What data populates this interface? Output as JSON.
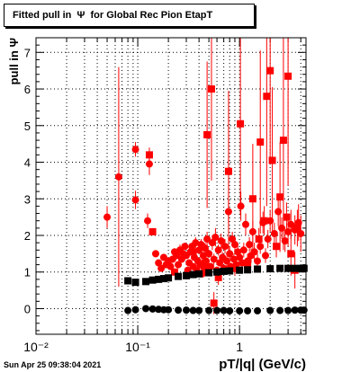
{
  "title": "Fitted pull in  Ψ  for Global Rec Pion EtapT",
  "timestamp": "Sun Apr 25 09:38:04 2021",
  "chart_data": {
    "type": "scatter",
    "title": "Fitted pull in  Ψ  for Global Rec Pion EtapT",
    "xlabel": "pT/|q| (GeV/c)",
    "ylabel": "pull in  Ψ",
    "x_scale": "log",
    "xlim": [
      0.01,
      4.5
    ],
    "ylim": [
      -0.7,
      7.4
    ],
    "grid": true,
    "x_major_ticks": [
      {
        "v": 0.01,
        "label": "10⁻²"
      },
      {
        "v": 0.1,
        "label": "10⁻¹"
      },
      {
        "v": 1,
        "label": "1"
      }
    ],
    "y_ticks": [
      0,
      1,
      2,
      3,
      4,
      5,
      6,
      7
    ],
    "series": [
      {
        "marker": "circle",
        "color": "#ff0000",
        "role": "sigma",
        "points": [
          [
            0.05,
            2.5,
            0.3
          ],
          [
            0.065,
            3.6,
            3.0
          ],
          [
            0.095,
            2.97,
            0.25
          ],
          [
            0.095,
            4.35,
            0.2
          ],
          [
            0.125,
            2.4,
            0.2
          ],
          [
            0.13,
            3.95,
            0.3
          ],
          [
            0.15,
            1.5,
            0.1
          ],
          [
            0.16,
            1.25,
            0.05
          ],
          [
            0.17,
            1.1,
            0.05
          ],
          [
            0.18,
            1.4,
            0.1
          ],
          [
            0.19,
            1.2,
            0.05
          ],
          [
            0.2,
            1.3,
            0.1
          ],
          [
            0.21,
            1.15,
            0.05
          ],
          [
            0.22,
            1.35,
            0.1
          ],
          [
            0.23,
            1.55,
            0.1
          ],
          [
            0.24,
            1.45,
            0.1
          ],
          [
            0.25,
            1.2,
            0.05
          ],
          [
            0.26,
            1.6,
            0.15
          ],
          [
            0.27,
            1.35,
            0.05
          ],
          [
            0.28,
            1.5,
            0.1
          ],
          [
            0.29,
            1.7,
            0.1
          ],
          [
            0.3,
            1.45,
            0.1
          ],
          [
            0.31,
            1.05,
            0.1
          ],
          [
            0.32,
            1.25,
            0.05
          ],
          [
            0.33,
            1.55,
            0.1
          ],
          [
            0.34,
            1.7,
            0.1
          ],
          [
            0.35,
            1.15,
            0.05
          ],
          [
            0.36,
            1.4,
            0.1
          ],
          [
            0.37,
            1.8,
            0.15
          ],
          [
            0.38,
            1.05,
            0.1
          ],
          [
            0.39,
            1.3,
            0.1
          ],
          [
            0.4,
            1.6,
            0.1
          ],
          [
            0.41,
            1.2,
            0.1
          ],
          [
            0.42,
            1.75,
            0.15
          ],
          [
            0.43,
            0.95,
            0.1
          ],
          [
            0.44,
            1.45,
            0.1
          ],
          [
            0.45,
            1.1,
            0.1
          ],
          [
            0.46,
            1.65,
            0.15
          ],
          [
            0.47,
            1.3,
            0.1
          ],
          [
            0.48,
            1.9,
            0.2
          ],
          [
            0.49,
            1.0,
            0.1
          ],
          [
            0.5,
            1.5,
            0.1
          ],
          [
            0.52,
            1.15,
            0.1
          ],
          [
            0.54,
            1.8,
            0.2
          ],
          [
            0.56,
            1.35,
            0.15
          ],
          [
            0.58,
            1.95,
            0.25
          ],
          [
            0.6,
            1.05,
            0.1
          ],
          [
            0.62,
            1.6,
            0.15
          ],
          [
            0.64,
            1.25,
            0.1
          ],
          [
            0.66,
            1.85,
            0.2
          ],
          [
            0.68,
            1.4,
            0.15
          ],
          [
            0.7,
            1.1,
            0.1
          ],
          [
            0.72,
            1.7,
            0.2
          ],
          [
            0.75,
            1.3,
            0.15
          ],
          [
            0.78,
            2.65,
            0.3
          ],
          [
            0.8,
            1.5,
            0.2
          ],
          [
            0.82,
            1.15,
            0.1
          ],
          [
            0.85,
            1.9,
            0.2
          ],
          [
            0.88,
            1.35,
            0.15
          ],
          [
            0.9,
            1.75,
            0.2
          ],
          [
            0.93,
            1.2,
            0.15
          ],
          [
            0.96,
            1.55,
            0.2
          ],
          [
            1.0,
            1.4,
            0.2
          ],
          [
            1.03,
            2.8,
            0.4
          ],
          [
            1.06,
            1.25,
            0.15
          ],
          [
            1.1,
            1.6,
            0.2
          ],
          [
            1.15,
            2.3,
            0.3
          ],
          [
            1.2,
            1.3,
            0.2
          ],
          [
            1.25,
            1.75,
            0.2
          ],
          [
            1.3,
            1.45,
            0.2
          ],
          [
            1.35,
            2.1,
            0.3
          ],
          [
            1.4,
            1.55,
            0.25
          ],
          [
            1.5,
            1.3,
            0.2
          ],
          [
            1.6,
            1.7,
            0.2
          ],
          [
            1.7,
            2.35,
            0.3
          ],
          [
            1.8,
            1.45,
            0.2
          ],
          [
            1.9,
            1.9,
            0.25
          ],
          [
            2.0,
            2.4,
            0.3
          ],
          [
            2.2,
            2.05,
            0.3
          ],
          [
            2.4,
            2.65,
            0.4
          ],
          [
            2.6,
            2.2,
            0.3
          ],
          [
            2.8,
            1.85,
            0.3
          ],
          [
            3.0,
            2.1,
            0.4
          ],
          [
            3.2,
            2.3,
            0.4
          ],
          [
            3.5,
            2.15,
            0.4
          ],
          [
            3.8,
            2.35,
            0.5
          ],
          [
            4.0,
            2.05,
            0.5
          ]
        ]
      },
      {
        "marker": "square",
        "color": "#ff0000",
        "role": "sigma",
        "points": [
          [
            0.13,
            4.2,
            0.2
          ],
          [
            0.14,
            2.1,
            0.1
          ],
          [
            0.48,
            4.75,
            2.0
          ],
          [
            0.53,
            6.0,
            2.5
          ],
          [
            0.56,
            0.15,
            0.3
          ],
          [
            0.78,
            3.75,
            2.2
          ],
          [
            1.02,
            5.05,
            2.5
          ],
          [
            1.35,
            3.0,
            1.5
          ],
          [
            1.6,
            4.55,
            2.5
          ],
          [
            1.85,
            5.8,
            3.0
          ],
          [
            2.0,
            6.5,
            2.5
          ],
          [
            2.1,
            4.05,
            2.0
          ],
          [
            2.5,
            3.05,
            1.5
          ],
          [
            2.7,
            4.6,
            3.0
          ],
          [
            3.0,
            6.35,
            3.0
          ],
          [
            3.2,
            1.5,
            0.6
          ],
          [
            3.5,
            1.05,
            0.5
          ],
          [
            3.7,
            2.2,
            0.5
          ],
          [
            0.23,
            1.0,
            0.1
          ],
          [
            0.35,
            1.55,
            0.2
          ],
          [
            0.46,
            1.25,
            0.2
          ],
          [
            0.62,
            0.85,
            0.2
          ],
          [
            0.9,
            1.1,
            0.2
          ],
          [
            1.2,
            1.2,
            0.2
          ],
          [
            1.55,
            1.9,
            0.3
          ],
          [
            1.75,
            2.4,
            0.4
          ],
          [
            2.3,
            1.7,
            0.3
          ],
          [
            2.9,
            2.5,
            0.4
          ]
        ]
      },
      {
        "marker": "square",
        "color": "#000000",
        "role": "mean-black-squares",
        "points": [
          [
            0.08,
            0.76
          ],
          [
            0.095,
            0.72
          ],
          [
            0.12,
            0.74
          ],
          [
            0.14,
            0.78
          ],
          [
            0.16,
            0.8
          ],
          [
            0.18,
            0.82
          ],
          [
            0.2,
            0.84
          ],
          [
            0.25,
            0.88
          ],
          [
            0.3,
            0.9
          ],
          [
            0.35,
            0.93
          ],
          [
            0.4,
            0.95
          ],
          [
            0.5,
            0.98
          ],
          [
            0.6,
            1.0
          ],
          [
            0.7,
            1.02
          ],
          [
            0.8,
            1.03
          ],
          [
            1.0,
            1.05
          ],
          [
            1.2,
            1.06
          ],
          [
            1.5,
            1.08
          ],
          [
            2.0,
            1.09
          ],
          [
            2.5,
            1.1
          ],
          [
            3.0,
            1.1
          ],
          [
            3.5,
            1.1
          ],
          [
            4.0,
            1.1
          ],
          [
            4.3,
            1.1
          ]
        ]
      },
      {
        "marker": "circle",
        "color": "#000000",
        "role": "mean-black-circles",
        "points": [
          [
            0.08,
            -0.05
          ],
          [
            0.095,
            -0.03
          ],
          [
            0.12,
            0.0
          ],
          [
            0.14,
            -0.01
          ],
          [
            0.16,
            -0.02
          ],
          [
            0.18,
            -0.03
          ],
          [
            0.2,
            -0.03
          ],
          [
            0.25,
            -0.04
          ],
          [
            0.3,
            -0.04
          ],
          [
            0.35,
            -0.05
          ],
          [
            0.4,
            -0.05
          ],
          [
            0.5,
            -0.05
          ],
          [
            0.6,
            -0.05
          ],
          [
            0.7,
            -0.05
          ],
          [
            0.8,
            -0.06
          ],
          [
            1.0,
            -0.06
          ],
          [
            1.2,
            -0.06
          ],
          [
            1.5,
            -0.06
          ],
          [
            2.0,
            -0.05
          ],
          [
            2.5,
            -0.05
          ],
          [
            3.0,
            -0.05
          ],
          [
            3.5,
            -0.04
          ],
          [
            4.0,
            -0.04
          ],
          [
            4.3,
            -0.04
          ]
        ]
      }
    ]
  }
}
